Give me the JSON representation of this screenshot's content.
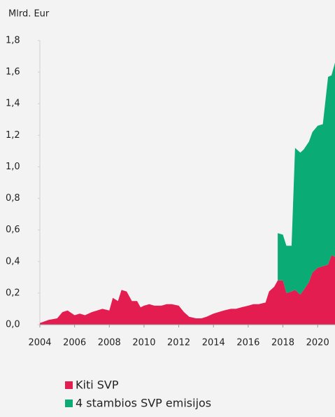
{
  "chart_data": {
    "type": "stacked-area",
    "y_label": "Mlrd. Eur",
    "x": [
      2004.0,
      2004.5,
      2005.0,
      2005.3,
      2005.6,
      2006.0,
      2006.3,
      2006.6,
      2007.0,
      2007.3,
      2007.6,
      2008.0,
      2008.2,
      2008.5,
      2008.7,
      2009.0,
      2009.3,
      2009.6,
      2009.8,
      2010.0,
      2010.3,
      2010.6,
      2011.0,
      2011.3,
      2011.6,
      2012.0,
      2012.3,
      2012.6,
      2013.0,
      2013.3,
      2013.6,
      2014.0,
      2014.3,
      2014.6,
      2015.0,
      2015.3,
      2015.6,
      2016.0,
      2016.3,
      2016.6,
      2017.0,
      2017.2,
      2017.5,
      2017.7,
      2018.0,
      2018.2,
      2018.5,
      2018.7,
      2019.0,
      2019.2,
      2019.5,
      2019.7,
      2020.0,
      2020.3,
      2020.6,
      2020.8,
      2021.0
    ],
    "series": [
      {
        "name": "Kiti SVP",
        "color": "#e31d4f",
        "values": [
          0.01,
          0.03,
          0.04,
          0.08,
          0.09,
          0.06,
          0.07,
          0.06,
          0.08,
          0.09,
          0.1,
          0.09,
          0.17,
          0.15,
          0.22,
          0.21,
          0.15,
          0.15,
          0.11,
          0.12,
          0.13,
          0.12,
          0.12,
          0.13,
          0.13,
          0.12,
          0.08,
          0.05,
          0.04,
          0.04,
          0.05,
          0.07,
          0.08,
          0.09,
          0.1,
          0.1,
          0.11,
          0.12,
          0.13,
          0.13,
          0.14,
          0.21,
          0.24,
          0.28,
          0.28,
          0.2,
          0.21,
          0.22,
          0.19,
          0.22,
          0.27,
          0.33,
          0.36,
          0.37,
          0.38,
          0.44,
          0.43
        ]
      },
      {
        "name": "4 stambios SVP emisijos",
        "color": "#0aab74",
        "values": [
          null,
          null,
          null,
          null,
          null,
          null,
          null,
          null,
          null,
          null,
          null,
          null,
          null,
          null,
          null,
          null,
          null,
          null,
          null,
          null,
          null,
          null,
          null,
          null,
          null,
          null,
          null,
          null,
          null,
          null,
          null,
          null,
          null,
          null,
          null,
          null,
          null,
          null,
          null,
          null,
          null,
          null,
          null,
          0.3,
          0.29,
          0.3,
          0.29,
          0.9,
          0.9,
          0.89,
          0.89,
          0.89,
          0.9,
          0.9,
          1.19,
          1.14,
          1.23
        ]
      }
    ],
    "xlim": [
      2004,
      2021
    ],
    "xticks": [
      2004,
      2006,
      2008,
      2010,
      2012,
      2014,
      2016,
      2018,
      2020
    ],
    "ylim": [
      0,
      1.8
    ],
    "yticks": [
      {
        "value": 0,
        "label": "0,0"
      },
      {
        "value": 0.2,
        "label": "0,2"
      },
      {
        "value": 0.4,
        "label": "0,4"
      },
      {
        "value": 0.6,
        "label": "0,6"
      },
      {
        "value": 0.8,
        "label": "0,8"
      },
      {
        "value": 1.0,
        "label": "1,0"
      },
      {
        "value": 1.2,
        "label": "1,2"
      },
      {
        "value": 1.4,
        "label": "1,4"
      },
      {
        "value": 1.6,
        "label": "1,6"
      },
      {
        "value": 1.8,
        "label": "1,8"
      }
    ]
  }
}
